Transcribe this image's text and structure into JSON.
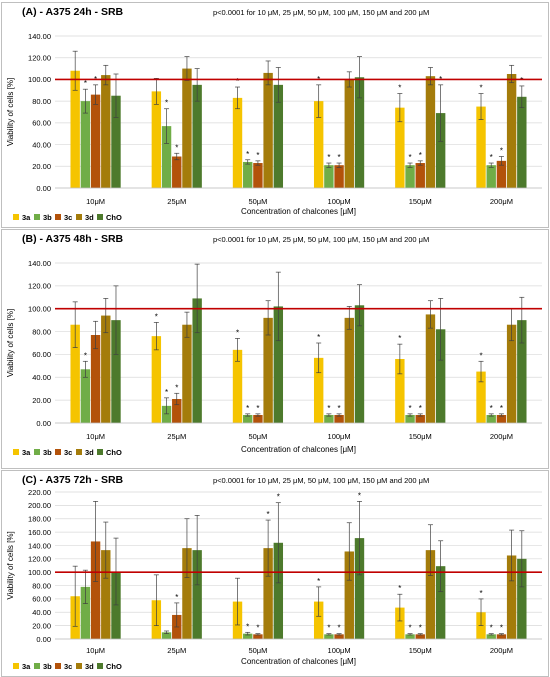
{
  "colors": {
    "3a": "#f5c400",
    "3b": "#70ad47",
    "3c": "#b3520a",
    "3d": "#a47c0b",
    "ChO": "#4d7a2c",
    "reference_line": "#c00000"
  },
  "chart_data": [
    {
      "type": "bar",
      "title": "(A) - A375 24h - SRB",
      "subtitle": "p<0.0001 for 10 μM, 25 μM, 50 μM, 100 μM, 150 μM and 200 μM",
      "xlabel": "Concentration of chalcones [μM]",
      "ylabel": "Viability of cells [%]",
      "ylim": [
        0,
        140
      ],
      "yticks": [
        "0.00",
        "20.00",
        "40.00",
        "60.00",
        "80.00",
        "100.00",
        "120.00",
        "140.00"
      ],
      "reference_line": 100,
      "legend": "bottom-left",
      "categories": [
        "10μM",
        "25μM",
        "50μM",
        "100μM",
        "150μM",
        "200μM"
      ],
      "series": [
        {
          "name": "3a",
          "values": [
            108,
            89,
            83,
            80,
            74,
            75
          ],
          "errors": [
            18,
            12,
            10,
            15,
            13,
            12
          ],
          "sig": [
            false,
            false,
            true,
            true,
            true,
            true
          ]
        },
        {
          "name": "3b",
          "values": [
            80,
            57,
            24,
            21,
            21,
            21
          ],
          "errors": [
            11,
            16,
            2,
            2,
            2,
            2
          ],
          "sig": [
            true,
            true,
            true,
            true,
            true,
            true
          ]
        },
        {
          "name": "3c",
          "values": [
            86,
            29,
            23,
            21,
            23,
            25
          ],
          "errors": [
            9,
            3,
            2,
            2,
            2,
            4
          ],
          "sig": [
            true,
            true,
            true,
            true,
            true,
            true
          ]
        },
        {
          "name": "3d",
          "values": [
            104,
            110,
            106,
            100,
            103,
            105
          ],
          "errors": [
            9,
            11,
            11,
            7,
            8,
            8
          ],
          "sig": [
            false,
            false,
            false,
            false,
            false,
            false
          ]
        },
        {
          "name": "ChO",
          "values": [
            85,
            95,
            95,
            102,
            69,
            84
          ],
          "errors": [
            20,
            15,
            16,
            19,
            26,
            10
          ],
          "sig": [
            false,
            false,
            false,
            false,
            true,
            true
          ]
        }
      ]
    },
    {
      "type": "bar",
      "title": "(B) - A375 48h - SRB",
      "subtitle": "p<0.0001 for 10 μM, 25 μM, 50 μM, 100 μM, 150 μM and 200 μM",
      "xlabel": "Concentration of chalcones [μM]",
      "ylabel": "Viability of cells [%]",
      "ylim": [
        0,
        140
      ],
      "yticks": [
        "0.00",
        "20.00",
        "40.00",
        "60.00",
        "80.00",
        "100.00",
        "120.00",
        "140.00"
      ],
      "reference_line": 100,
      "legend": "bottom-left",
      "categories": [
        "10μM",
        "25μM",
        "50μM",
        "100μM",
        "150μM",
        "200μM"
      ],
      "series": [
        {
          "name": "3a",
          "values": [
            86,
            76,
            64,
            57,
            56,
            45
          ],
          "errors": [
            20,
            12,
            10,
            13,
            13,
            9
          ],
          "sig": [
            false,
            true,
            true,
            true,
            true,
            true
          ]
        },
        {
          "name": "3b",
          "values": [
            47,
            15,
            7,
            7,
            7,
            7
          ],
          "errors": [
            7,
            7,
            1,
            1,
            1,
            1
          ],
          "sig": [
            true,
            true,
            true,
            true,
            true,
            true
          ]
        },
        {
          "name": "3c",
          "values": [
            77,
            21,
            7,
            7,
            7,
            7
          ],
          "errors": [
            12,
            5,
            1,
            1,
            1,
            1
          ],
          "sig": [
            false,
            true,
            true,
            true,
            true,
            true
          ]
        },
        {
          "name": "3d",
          "values": [
            94,
            86,
            92,
            92,
            95,
            86
          ],
          "errors": [
            15,
            11,
            15,
            10,
            12,
            14
          ],
          "sig": [
            false,
            false,
            false,
            false,
            false,
            false
          ]
        },
        {
          "name": "ChO",
          "values": [
            90,
            109,
            102,
            103,
            82,
            90
          ],
          "errors": [
            30,
            30,
            30,
            18,
            27,
            20
          ],
          "sig": [
            false,
            false,
            false,
            false,
            false,
            false
          ]
        }
      ]
    },
    {
      "type": "bar",
      "title": "(C) - A375 72h - SRB",
      "subtitle": "p<0.0001 for 10 μM, 25 μM, 50 μM, 100 μM, 150 μM and 200 μM",
      "xlabel": "Concentration of  chalcones [μM]",
      "ylabel": "Viability of cells [%]",
      "ylim": [
        0,
        220
      ],
      "yticks": [
        "0.00",
        "20.00",
        "40.00",
        "60.00",
        "80.00",
        "100.00",
        "120.00",
        "140.00",
        "160.00",
        "180.00",
        "200.00",
        "220.00"
      ],
      "reference_line": 100,
      "legend": "bottom-left",
      "categories": [
        "10μM",
        "25μM",
        "50μM",
        "100μM",
        "150μM",
        "200μM"
      ],
      "series": [
        {
          "name": "3a",
          "values": [
            64,
            58,
            56,
            56,
            47,
            40
          ],
          "errors": [
            45,
            38,
            35,
            22,
            20,
            20
          ],
          "sig": [
            false,
            false,
            false,
            true,
            true,
            true
          ]
        },
        {
          "name": "3b",
          "values": [
            78,
            10,
            8,
            7,
            7,
            7
          ],
          "errors": [
            25,
            2,
            2,
            1,
            1,
            1
          ],
          "sig": [
            false,
            false,
            true,
            true,
            true,
            true
          ]
        },
        {
          "name": "3c",
          "values": [
            146,
            36,
            7,
            7,
            7,
            7
          ],
          "errors": [
            60,
            18,
            1,
            1,
            1,
            1
          ],
          "sig": [
            false,
            true,
            true,
            true,
            true,
            true
          ]
        },
        {
          "name": "3d",
          "values": [
            133,
            136,
            136,
            131,
            133,
            125
          ],
          "errors": [
            42,
            44,
            42,
            43,
            38,
            38
          ],
          "sig": [
            false,
            false,
            true,
            false,
            false,
            false
          ]
        },
        {
          "name": "ChO",
          "values": [
            101,
            133,
            144,
            151,
            109,
            120
          ],
          "errors": [
            50,
            52,
            60,
            55,
            38,
            42
          ],
          "sig": [
            false,
            false,
            true,
            true,
            false,
            false
          ]
        }
      ]
    }
  ]
}
